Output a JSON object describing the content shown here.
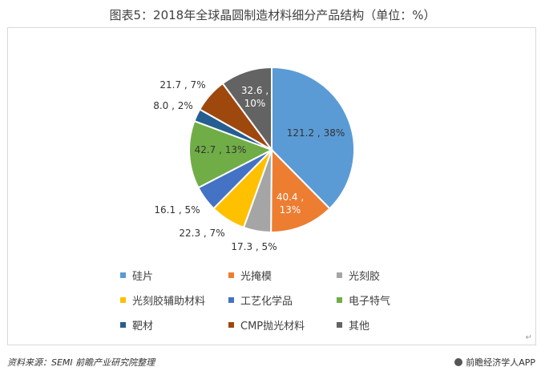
{
  "header": {
    "title": "图表5：2018年全球晶圆制造材料细分产品结构（单位：%）"
  },
  "footer": {
    "source": "资料来源：SEMI 前瞻产业研究院整理",
    "brand": "前瞻经济学人APP"
  },
  "chart_data": {
    "type": "pie",
    "title": "图表5：2018年全球晶圆制造材料细分产品结构（单位：%）",
    "slices": [
      {
        "name": "硅片",
        "value": 121.2,
        "percent": "38%",
        "label": "121.2 , 38%",
        "color": "#5B9BD5"
      },
      {
        "name": "光掩模",
        "value": 40.4,
        "percent": "13%",
        "label": "40.4 , 13%",
        "color": "#ED7D31"
      },
      {
        "name": "光刻胶",
        "value": 17.3,
        "percent": "5%",
        "label": "17.3 , 5%",
        "color": "#A5A5A5"
      },
      {
        "name": "光刻胶辅助材料",
        "value": 22.3,
        "percent": "7%",
        "label": "22.3 , 7%",
        "color": "#FFC000"
      },
      {
        "name": "工艺化学品",
        "value": 16.1,
        "percent": "5%",
        "label": "16.1 , 5%",
        "color": "#4472C4"
      },
      {
        "name": "电子特气",
        "value": 42.7,
        "percent": "13%",
        "label": "42.7 , 13%",
        "color": "#70AD47"
      },
      {
        "name": "靶材",
        "value": 8.0,
        "percent": "2%",
        "label": "8.0 , 2%",
        "color": "#255E91"
      },
      {
        "name": "CMP抛光材料",
        "value": 21.7,
        "percent": "7%",
        "label": "21.7 , 7%",
        "color": "#9E480E"
      },
      {
        "name": "其他",
        "value": 32.6,
        "percent": "10%",
        "label": "32.6 , 10%",
        "color": "#636363"
      }
    ],
    "legend_position": "bottom"
  }
}
